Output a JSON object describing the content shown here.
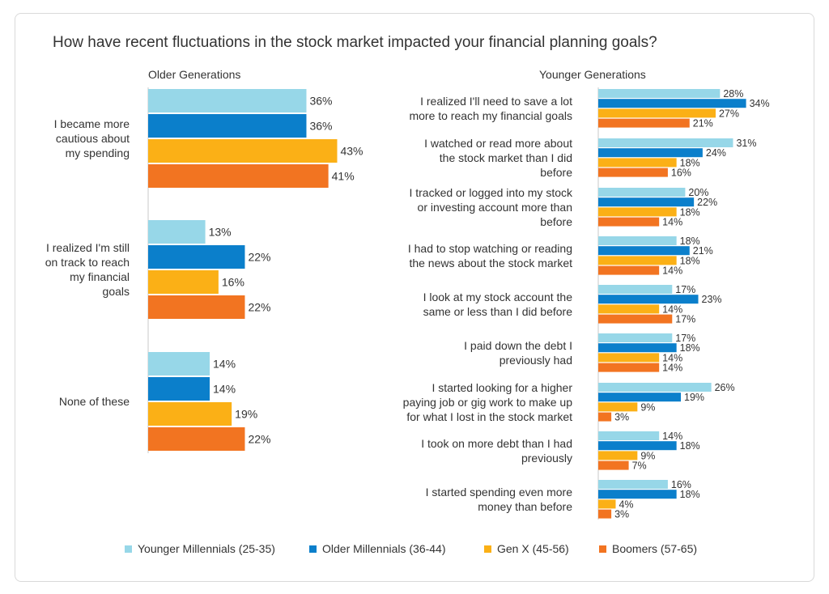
{
  "title": "How have recent fluctuations in the stock  market impacted your financial planning goals?",
  "colors": {
    "younger_millennials": "#97d7e8",
    "older_millennials": "#0b7fcb",
    "gen_x": "#fbb016",
    "boomers": "#f27421",
    "axis": "#c8c8c8",
    "text": "#333333"
  },
  "legend": [
    {
      "label": "Younger Millennials (25-35)",
      "color": "#97d7e8"
    },
    {
      "label": "Older Millennials (36-44)",
      "color": "#0b7fcb"
    },
    {
      "label": "Gen X (45-56)",
      "color": "#fbb016"
    },
    {
      "label": "Boomers (57-65)",
      "color": "#f27421"
    }
  ],
  "chart_data": [
    {
      "type": "bar",
      "orientation": "horizontal",
      "title": "Older Generations",
      "value_format": "percent",
      "series_colors": [
        "#97d7e8",
        "#0b7fcb",
        "#fbb016",
        "#f27421"
      ],
      "categories": [
        "I became more cautious about my spending",
        "I realized I'm still on track to reach my financial goals",
        "None of these"
      ],
      "category_lines": [
        [
          "I became more",
          "cautious about",
          "my spending"
        ],
        [
          "I realized I'm still",
          "on track to reach",
          "my financial",
          "goals"
        ],
        [
          "None of these"
        ]
      ],
      "series": [
        {
          "name": "Younger Millennials (25-35)",
          "values": [
            36,
            13,
            14
          ]
        },
        {
          "name": "Older Millennials (36-44)",
          "values": [
            36,
            22,
            14
          ]
        },
        {
          "name": "Gen X (45-56)",
          "values": [
            43,
            16,
            19
          ]
        },
        {
          "name": "Boomers (57-65)",
          "values": [
            41,
            22,
            22
          ]
        }
      ]
    },
    {
      "type": "bar",
      "orientation": "horizontal",
      "title": "Younger Generations",
      "value_format": "percent",
      "series_colors": [
        "#97d7e8",
        "#0b7fcb",
        "#fbb016",
        "#f27421"
      ],
      "categories": [
        "I realized I'll need to save a lot more to reach my financial goals",
        "I watched or read more about the stock market than I did before",
        "I tracked or logged into my stock or investing account more than before",
        "I had to stop watching or reading the news about the stock market",
        "I look at my stock account the same or less than I did before",
        "I paid down the debt I previously had",
        "I started looking for a higher paying job or gig work to make up for what I lost in the stock market",
        "I took on more debt than I had previously",
        "I started spending even more money than before"
      ],
      "category_lines": [
        [
          "I realized I'll need to save a lot",
          "more to reach my financial goals"
        ],
        [
          "I watched or read more about",
          "the stock market than I did",
          "before"
        ],
        [
          "I tracked or logged into my stock",
          "or investing account more than",
          "before"
        ],
        [
          "I had to stop watching or reading",
          "the news about the stock market"
        ],
        [
          "I look at my stock account the",
          "same or less than I did before"
        ],
        [
          "I paid down the debt I",
          "previously had"
        ],
        [
          "I started looking for a higher",
          "paying job or gig work to make up",
          "for what I lost in the stock market"
        ],
        [
          "I took on more debt than I had",
          "previously"
        ],
        [
          "I started spending even more",
          "money than before"
        ]
      ],
      "series": [
        {
          "name": "Younger Millennials (25-35)",
          "values": [
            28,
            31,
            20,
            18,
            17,
            17,
            26,
            14,
            16
          ]
        },
        {
          "name": "Older Millennials (36-44)",
          "values": [
            34,
            24,
            22,
            21,
            23,
            18,
            19,
            18,
            18
          ]
        },
        {
          "name": "Gen X (45-56)",
          "values": [
            27,
            18,
            18,
            18,
            14,
            14,
            9,
            9,
            4
          ]
        },
        {
          "name": "Boomers (57-65)",
          "values": [
            21,
            16,
            14,
            14,
            17,
            14,
            3,
            7,
            3
          ]
        }
      ]
    }
  ]
}
